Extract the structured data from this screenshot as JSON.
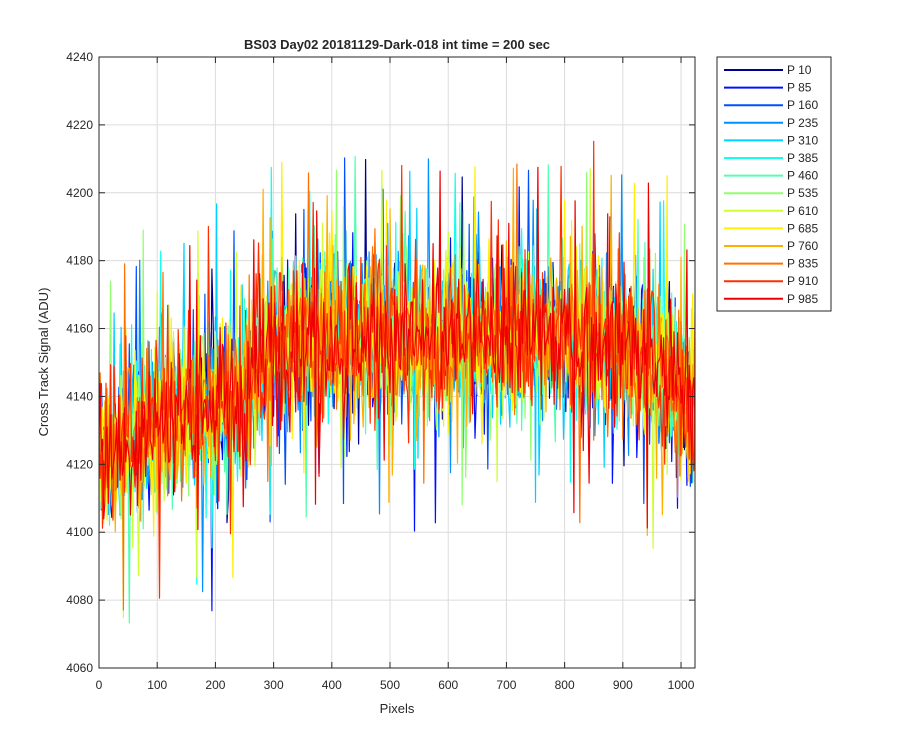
{
  "chart_data": {
    "type": "line",
    "title": "BS03 Day02 20181129-Dark-018 int time = 200 sec",
    "xlabel": "Pixels",
    "ylabel": "Cross Track Signal (ADU)",
    "xlim": [
      0,
      1024
    ],
    "ylim": [
      4060,
      4240
    ],
    "xticks": [
      0,
      100,
      200,
      300,
      400,
      500,
      600,
      700,
      800,
      900,
      1000
    ],
    "yticks": [
      4060,
      4080,
      4100,
      4120,
      4140,
      4160,
      4180,
      4200,
      4220,
      4240
    ],
    "grid": true,
    "legend_position": "outside-top-right",
    "trend_x": [
      0,
      100,
      200,
      250,
      270,
      280,
      300,
      400,
      500,
      600,
      700,
      800,
      900,
      950,
      1000,
      1024
    ],
    "trend_y": [
      4122,
      4133,
      4138,
      4140,
      4146,
      4152,
      4156,
      4158,
      4158,
      4157,
      4158,
      4158,
      4155,
      4150,
      4143,
      4136
    ],
    "noise_amplitude_adu": 20,
    "series": [
      {
        "name": "P 10",
        "color": "#00008f"
      },
      {
        "name": "P 85",
        "color": "#0010ff"
      },
      {
        "name": "P 160",
        "color": "#0050ff"
      },
      {
        "name": "P 235",
        "color": "#0090ff"
      },
      {
        "name": "P 310",
        "color": "#00d0ff"
      },
      {
        "name": "P 385",
        "color": "#10ffef"
      },
      {
        "name": "P 460",
        "color": "#50ffaf"
      },
      {
        "name": "P 535",
        "color": "#90ff6f"
      },
      {
        "name": "P 610",
        "color": "#cfff30"
      },
      {
        "name": "P 685",
        "color": "#ffef00"
      },
      {
        "name": "P 760",
        "color": "#ffaf00"
      },
      {
        "name": "P 835",
        "color": "#ff7000"
      },
      {
        "name": "P 910",
        "color": "#ff3000"
      },
      {
        "name": "P 985",
        "color": "#ef0000"
      }
    ]
  }
}
